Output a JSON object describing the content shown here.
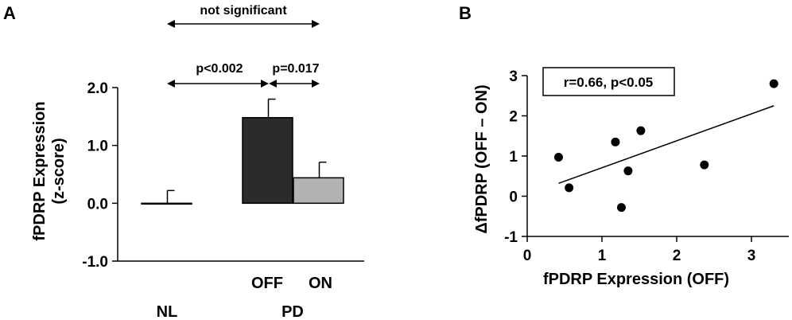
{
  "chart_data": [
    {
      "panel": "A",
      "type": "bar",
      "ylabel_line1": "fPDRP Expression",
      "ylabel_line2": "(z-score)",
      "ylim": [
        -1.0,
        2.0
      ],
      "yticks": [
        "2.0",
        "1.0",
        "0.0",
        "-1.0"
      ],
      "bars": [
        {
          "label": "",
          "value": 0.0,
          "error": 0.22,
          "color": "#ffffff"
        },
        {
          "label": "OFF",
          "value": 1.48,
          "error": 0.32,
          "color": "#2b2b2b"
        },
        {
          "label": "ON",
          "value": 0.44,
          "error": 0.27,
          "color": "#b2b2b2"
        }
      ],
      "group_labels": [
        "NL",
        "PD"
      ],
      "comparisons": [
        {
          "text": "not significant"
        },
        {
          "text": "p<0.002"
        },
        {
          "text": "p=0.017"
        }
      ]
    },
    {
      "panel": "B",
      "type": "scatter",
      "xlabel": "fPDRP Expression (OFF)",
      "ylabel": "ΔfPDRP (OFF – ON)",
      "xlim": [
        0,
        3.5
      ],
      "ylim": [
        -1,
        3
      ],
      "xticks": [
        "0",
        "1",
        "2",
        "3"
      ],
      "yticks": [
        "3",
        "2",
        "1",
        "0",
        "-1"
      ],
      "points": [
        {
          "x": 0.42,
          "y": 0.97
        },
        {
          "x": 0.56,
          "y": 0.21
        },
        {
          "x": 1.18,
          "y": 1.35
        },
        {
          "x": 1.26,
          "y": -0.28
        },
        {
          "x": 1.35,
          "y": 0.63
        },
        {
          "x": 1.52,
          "y": 1.63
        },
        {
          "x": 2.37,
          "y": 0.78
        },
        {
          "x": 3.3,
          "y": 2.8
        }
      ],
      "fit_line": {
        "x": [
          0.42,
          3.3
        ],
        "y": [
          0.32,
          2.25
        ]
      },
      "annotation": "r=0.66, p<0.05"
    }
  ]
}
